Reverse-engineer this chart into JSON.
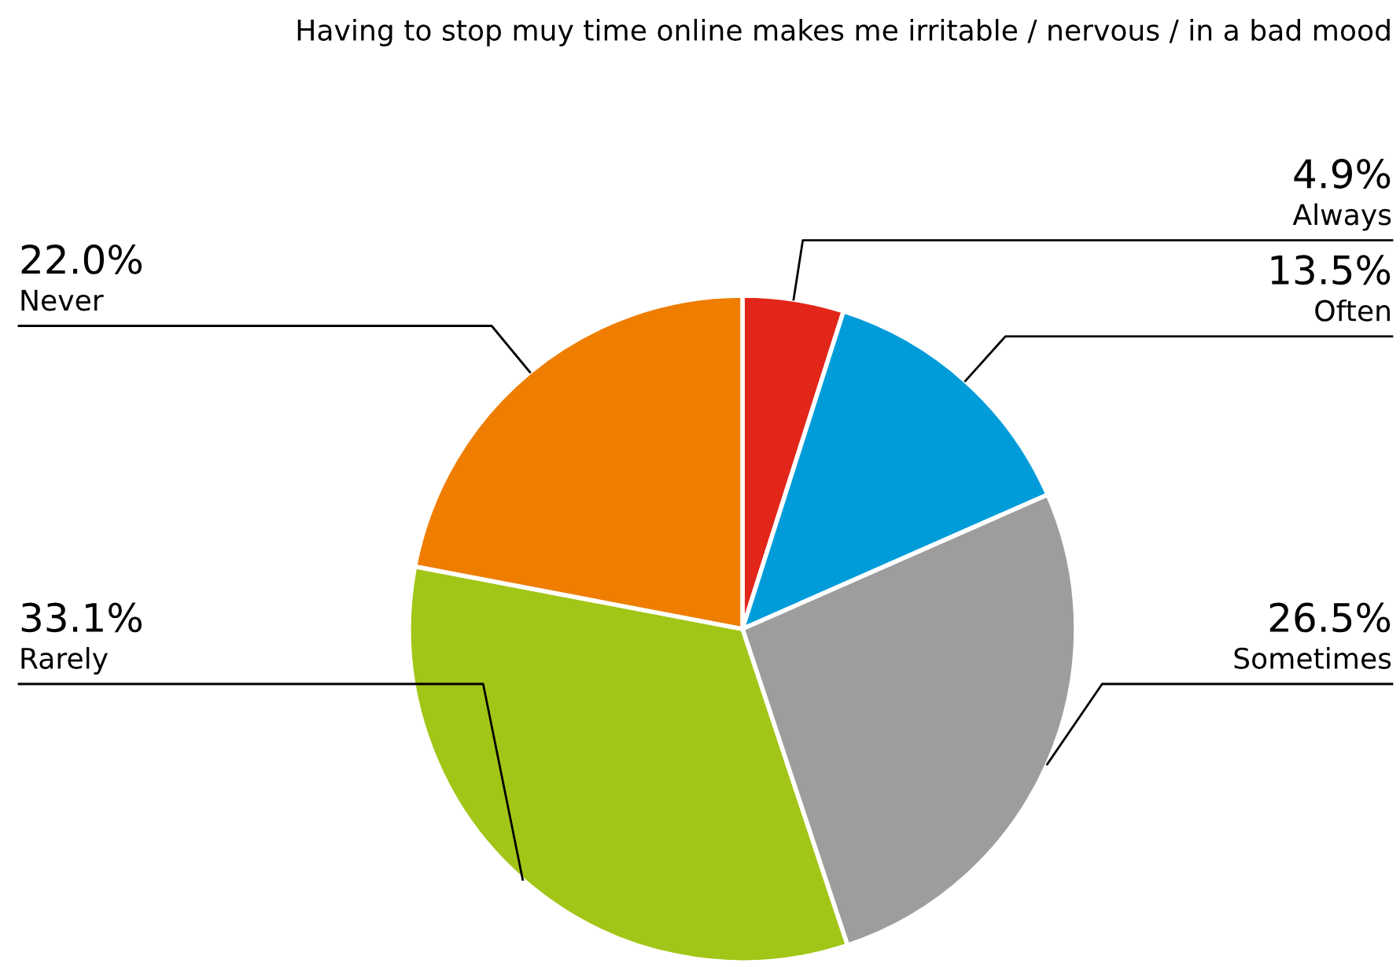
{
  "chart_data": {
    "type": "pie",
    "title": "Having to stop muy time online makes me irritable / nervous / in a bad mood",
    "categories": [
      "Always",
      "Often",
      "Sometimes",
      "Rarely",
      "Never"
    ],
    "values": [
      4.9,
      13.5,
      26.5,
      33.1,
      22.0
    ],
    "value_labels": [
      "4.9%",
      "13.5%",
      "26.5%",
      "33.1%",
      "22.0%"
    ],
    "colors": [
      "#e3261a",
      "#009cda",
      "#9d9d9c",
      "#a2c617",
      "#ef7d00"
    ],
    "legend": false
  }
}
